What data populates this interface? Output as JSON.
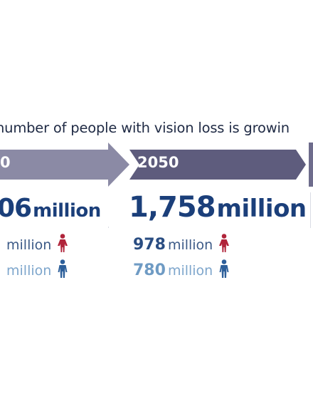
{
  "headline": "number of people with vision loss is growin",
  "chart_data": {
    "type": "table",
    "columns": [
      {
        "year": "0",
        "total": "06",
        "total_unit": "million",
        "female": "",
        "female_unit": "million",
        "male": "",
        "male_unit": "million"
      },
      {
        "year": "2050",
        "total": "1,758",
        "total_unit": "million",
        "female": "978",
        "female_unit": "million",
        "male": "780",
        "male_unit": "million"
      }
    ]
  },
  "icons": {
    "female": "female-person-icon",
    "male": "male-person-icon"
  },
  "colors": {
    "arrow_left": "#8b8aa5",
    "arrow_right": "#5e5c7d",
    "arrow_far": "#6e6c8c",
    "total_text": "#1b3f7a",
    "female_value": "#2a4d82",
    "male_value": "#6f9bc4",
    "female_icon": "#b0243a",
    "male_icon": "#2d5f9a"
  }
}
